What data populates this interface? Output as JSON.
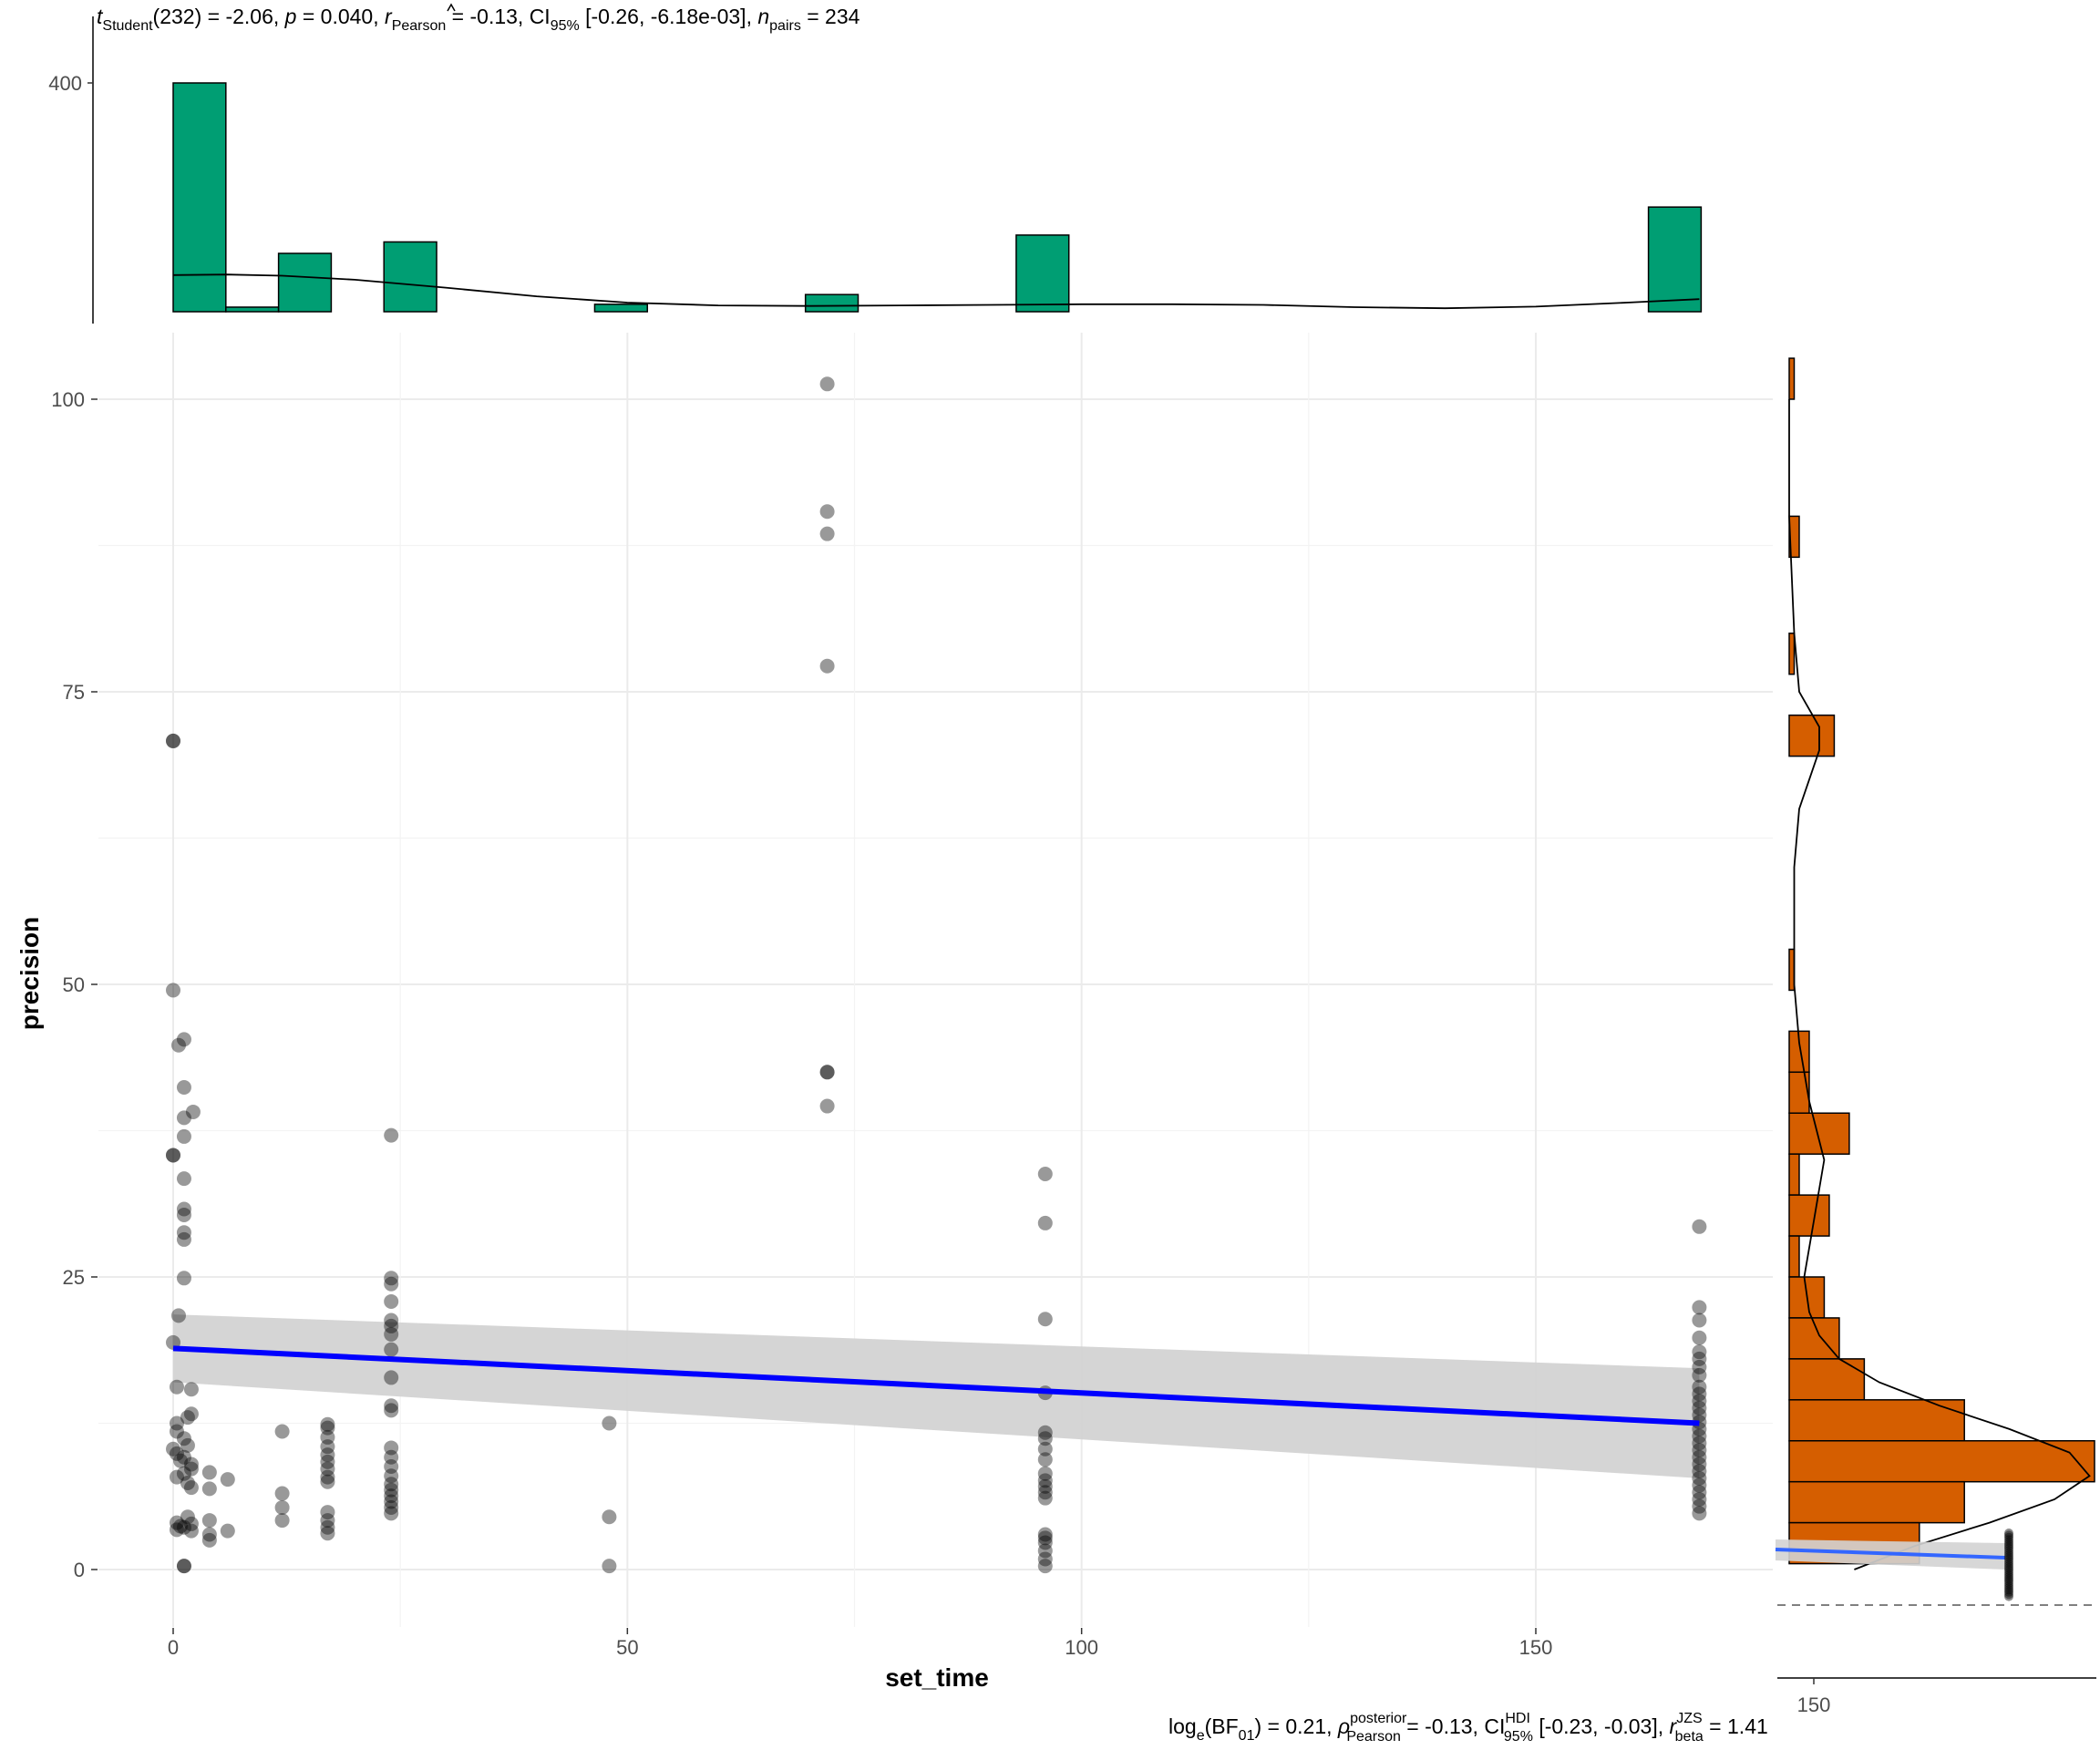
{
  "subtitle": {
    "t_label": "t",
    "t_sub": "Student",
    "df_text": "(232) = -2.06, ",
    "p_label": "p",
    "p_text": " = 0.040, ",
    "r_label": "r",
    "r_sub": "Pearson",
    "r_text": " = -0.13, CI",
    "ci_sub": "95%",
    "ci_text": " [-0.26, -6.18e-03], ",
    "n_label": "n",
    "n_sub": "pairs",
    "n_text": " = 234"
  },
  "caption": {
    "part1": "log",
    "sub1": "e",
    "part2": "(BF",
    "sub2": "01",
    "part3": ") = 0.21, ",
    "rho": "ρ",
    "rho_sup": "posterior",
    "rho_sub": "Pearson",
    "part4": " = -0.13, CI",
    "ci_sup": "HDI",
    "ci_sub": "95%",
    "part5": " [-0.23, -0.03], ",
    "r": "r",
    "r_sup": "JZS",
    "r_sub": "beta",
    "part6": " = 1.41"
  },
  "chart_data": {
    "type": "scatter",
    "xlabel": "set_time",
    "ylabel": "precision",
    "xlim": [
      -3,
      176
    ],
    "ylim": [
      -3,
      104
    ],
    "x_ticks": [
      0,
      50,
      100,
      150
    ],
    "y_ticks": [
      0,
      25,
      50,
      75,
      100
    ],
    "grid": true,
    "point_color": "#000000",
    "line_color": "#0000ff",
    "band_color": "#d3d3d3",
    "points": [
      [
        0,
        70.8
      ],
      [
        0,
        70.8
      ],
      [
        0,
        35.4
      ],
      [
        0,
        35.4
      ],
      [
        0,
        49.5
      ],
      [
        0.6,
        44.8
      ],
      [
        1.2,
        45.3
      ],
      [
        1.2,
        41.2
      ],
      [
        1.2,
        38.6
      ],
      [
        2.2,
        39.1
      ],
      [
        1.2,
        37.0
      ],
      [
        1.2,
        33.4
      ],
      [
        1.2,
        30.8
      ],
      [
        1.2,
        30.3
      ],
      [
        1.2,
        28.8
      ],
      [
        1.2,
        28.2
      ],
      [
        1.2,
        24.9
      ],
      [
        0.6,
        21.7
      ],
      [
        0,
        19.4
      ],
      [
        0.4,
        15.6
      ],
      [
        2,
        15.4
      ],
      [
        2,
        13.3
      ],
      [
        1.6,
        13.0
      ],
      [
        0.4,
        12.5
      ],
      [
        0.4,
        11.8
      ],
      [
        1.2,
        11.2
      ],
      [
        1.6,
        10.6
      ],
      [
        0,
        10.3
      ],
      [
        0.4,
        9.9
      ],
      [
        1.2,
        9.6
      ],
      [
        0.8,
        9.3
      ],
      [
        2,
        9.0
      ],
      [
        2,
        8.6
      ],
      [
        1.2,
        8.2
      ],
      [
        0.4,
        7.9
      ],
      [
        1.6,
        7.4
      ],
      [
        2,
        7.0
      ],
      [
        4,
        8.3
      ],
      [
        4,
        6.9
      ],
      [
        6,
        7.7
      ],
      [
        0.4,
        4.0
      ],
      [
        0.8,
        3.7
      ],
      [
        0.4,
        3.4
      ],
      [
        1.2,
        3.6
      ],
      [
        2,
        3.9
      ],
      [
        2,
        3.3
      ],
      [
        1.6,
        4.5
      ],
      [
        4,
        4.2
      ],
      [
        4,
        3.0
      ],
      [
        4,
        2.5
      ],
      [
        6,
        3.3
      ],
      [
        1.2,
        0.3
      ],
      [
        1.2,
        0.3
      ],
      [
        12,
        11.8
      ],
      [
        12,
        6.5
      ],
      [
        12,
        5.3
      ],
      [
        12,
        4.2
      ],
      [
        17,
        12.4
      ],
      [
        17,
        12.1
      ],
      [
        17,
        11.3
      ],
      [
        17,
        10.5
      ],
      [
        17,
        9.8
      ],
      [
        17,
        9.2
      ],
      [
        17,
        8.6
      ],
      [
        17,
        7.9
      ],
      [
        17,
        7.5
      ],
      [
        17,
        4.9
      ],
      [
        17,
        4.2
      ],
      [
        17,
        3.6
      ],
      [
        17,
        3.1
      ],
      [
        24,
        37.1
      ],
      [
        24,
        24.9
      ],
      [
        24,
        24.4
      ],
      [
        24,
        22.9
      ],
      [
        24,
        21.3
      ],
      [
        24,
        20.8
      ],
      [
        24,
        20.1
      ],
      [
        24,
        18.8
      ],
      [
        24,
        16.4
      ],
      [
        24,
        14.0
      ],
      [
        24,
        13.6
      ],
      [
        24,
        10.4
      ],
      [
        24,
        9.6
      ],
      [
        24,
        8.8
      ],
      [
        24,
        8.0
      ],
      [
        24,
        7.3
      ],
      [
        24,
        6.8
      ],
      [
        24,
        6.3
      ],
      [
        24,
        5.8
      ],
      [
        24,
        5.3
      ],
      [
        24,
        4.8
      ],
      [
        48,
        12.5
      ],
      [
        48,
        4.5
      ],
      [
        48,
        0.3
      ],
      [
        72,
        101.3
      ],
      [
        72,
        90.4
      ],
      [
        72,
        88.5
      ],
      [
        72,
        77.2
      ],
      [
        72,
        42.5
      ],
      [
        72,
        42.5
      ],
      [
        72,
        39.6
      ],
      [
        96,
        33.8
      ],
      [
        96,
        29.6
      ],
      [
        96,
        21.4
      ],
      [
        96,
        15.1
      ],
      [
        96,
        11.7
      ],
      [
        96,
        11.2
      ],
      [
        96,
        10.3
      ],
      [
        96,
        9.4
      ],
      [
        96,
        8.2
      ],
      [
        96,
        7.6
      ],
      [
        96,
        7.1
      ],
      [
        96,
        6.6
      ],
      [
        96,
        6.1
      ],
      [
        96,
        3.0
      ],
      [
        96,
        2.7
      ],
      [
        96,
        2.3
      ],
      [
        96,
        1.6
      ],
      [
        96,
        0.9
      ],
      [
        96,
        0.3
      ],
      [
        168,
        29.3
      ],
      [
        168,
        22.4
      ],
      [
        168,
        21.3
      ],
      [
        168,
        19.8
      ],
      [
        168,
        18.6
      ],
      [
        168,
        18.0
      ],
      [
        168,
        17.3
      ],
      [
        168,
        16.6
      ],
      [
        168,
        15.6
      ],
      [
        168,
        15.0
      ],
      [
        168,
        14.4
      ],
      [
        168,
        13.8
      ],
      [
        168,
        13.2
      ],
      [
        168,
        12.6
      ],
      [
        168,
        12.0
      ],
      [
        168,
        11.4
      ],
      [
        168,
        10.8
      ],
      [
        168,
        10.2
      ],
      [
        168,
        9.6
      ],
      [
        168,
        9.0
      ],
      [
        168,
        8.4
      ],
      [
        168,
        7.8
      ],
      [
        168,
        7.2
      ],
      [
        168,
        6.6
      ],
      [
        168,
        6.0
      ],
      [
        168,
        5.4
      ],
      [
        168,
        4.8
      ]
    ],
    "regression": {
      "x": [
        0,
        168
      ],
      "y": [
        18.9,
        12.5
      ],
      "ci_low": [
        16.0,
        7.8
      ],
      "ci_high": [
        21.8,
        17.2
      ]
    },
    "x_histogram": {
      "color": "#009e73",
      "bins": [
        {
          "x0": 0,
          "x1": 5.8,
          "value": 400
        },
        {
          "x0": 5.8,
          "x1": 11.6,
          "value": 8
        },
        {
          "x0": 11.6,
          "x1": 17.4,
          "value": 102
        },
        {
          "x0": 17.4,
          "x1": 23.2,
          "value": 0
        },
        {
          "x0": 23.2,
          "x1": 29,
          "value": 122
        },
        {
          "x0": 29,
          "x1": 46.4,
          "value": 0
        },
        {
          "x0": 46.4,
          "x1": 52.2,
          "value": 13
        },
        {
          "x0": 52.2,
          "x1": 69.6,
          "value": 0
        },
        {
          "x0": 69.6,
          "x1": 75.4,
          "value": 30
        },
        {
          "x0": 75.4,
          "x1": 92.8,
          "value": 0
        },
        {
          "x0": 92.8,
          "x1": 98.6,
          "value": 134
        },
        {
          "x0": 98.6,
          "x1": 162.4,
          "value": 0
        },
        {
          "x0": 162.4,
          "x1": 168.2,
          "value": 183
        }
      ],
      "density": [
        [
          0,
          64
        ],
        [
          6,
          65
        ],
        [
          12,
          63
        ],
        [
          20,
          56
        ],
        [
          30,
          42
        ],
        [
          40,
          27
        ],
        [
          50,
          16
        ],
        [
          60,
          11
        ],
        [
          70,
          10
        ],
        [
          80,
          11
        ],
        [
          90,
          12
        ],
        [
          100,
          13
        ],
        [
          110,
          13
        ],
        [
          120,
          12
        ],
        [
          130,
          8
        ],
        [
          140,
          6
        ],
        [
          150,
          9
        ],
        [
          160,
          16
        ],
        [
          168,
          22
        ]
      ],
      "y_ticks": [
        400
      ],
      "ylim": [
        0,
        405
      ]
    },
    "y_histogram": {
      "color": "#d55e00",
      "bins": [
        {
          "y0": 100,
          "y1": 103.5,
          "value": 1
        },
        {
          "y0": 86.5,
          "y1": 90,
          "value": 2
        },
        {
          "y0": 76.5,
          "y1": 80,
          "value": 1
        },
        {
          "y0": 69.5,
          "y1": 73,
          "value": 9
        },
        {
          "y0": 49.5,
          "y1": 53,
          "value": 1
        },
        {
          "y0": 42.5,
          "y1": 46,
          "value": 4
        },
        {
          "y0": 39,
          "y1": 42.5,
          "value": 4
        },
        {
          "y0": 35.5,
          "y1": 39,
          "value": 12
        },
        {
          "y0": 32,
          "y1": 35.5,
          "value": 2
        },
        {
          "y0": 28.5,
          "y1": 32,
          "value": 8
        },
        {
          "y0": 25,
          "y1": 28.5,
          "value": 2
        },
        {
          "y0": 21.5,
          "y1": 25,
          "value": 7
        },
        {
          "y0": 18,
          "y1": 21.5,
          "value": 10
        },
        {
          "y0": 14.5,
          "y1": 18,
          "value": 15
        },
        {
          "y0": 11,
          "y1": 14.5,
          "value": 35
        },
        {
          "y0": 7.5,
          "y1": 11,
          "value": 61
        },
        {
          "y0": 4,
          "y1": 7.5,
          "value": 35
        },
        {
          "y0": 0.5,
          "y1": 4,
          "value": 26
        }
      ],
      "density": [
        [
          0,
          13
        ],
        [
          2,
          25
        ],
        [
          4,
          40
        ],
        [
          6,
          53
        ],
        [
          8,
          60
        ],
        [
          10,
          56
        ],
        [
          12,
          44
        ],
        [
          14,
          30
        ],
        [
          16,
          18
        ],
        [
          18,
          10
        ],
        [
          20,
          6
        ],
        [
          22,
          4
        ],
        [
          25,
          3
        ],
        [
          30,
          5
        ],
        [
          35,
          7
        ],
        [
          40,
          4
        ],
        [
          45,
          2
        ],
        [
          50,
          1
        ],
        [
          55,
          1
        ],
        [
          60,
          1
        ],
        [
          65,
          2
        ],
        [
          70,
          6
        ],
        [
          72,
          6
        ],
        [
          75,
          2
        ],
        [
          80,
          1
        ],
        [
          90,
          0
        ],
        [
          100,
          0
        ]
      ],
      "xlim": [
        0,
        61
      ],
      "bottom_ticks": [
        150
      ],
      "inset": {
        "points_x": 150,
        "line_color": "#3366ff",
        "band_color": "#d3d3d3"
      }
    }
  }
}
